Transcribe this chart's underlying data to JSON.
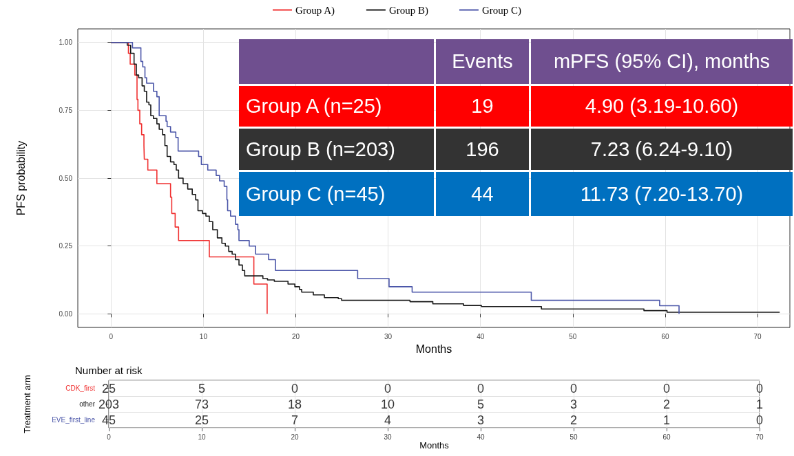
{
  "chart_data": [
    {
      "type": "step",
      "xlabel": "Months",
      "ylabel": "PFS probability",
      "xlim": [
        -3.6,
        73.5
      ],
      "xticks": [
        0,
        10,
        20,
        30,
        40,
        50,
        60,
        70
      ],
      "ylim": [
        -0.05,
        1.05
      ],
      "yticks": [
        {
          "value": 0,
          "label": "0.00"
        },
        {
          "value": 0.25,
          "label": "0.25"
        },
        {
          "value": 0.5,
          "label": "0.50"
        },
        {
          "value": 0.75,
          "label": "0.75"
        },
        {
          "value": 1,
          "label": "1.00"
        }
      ],
      "grid": true,
      "legend": "top",
      "marker": "none",
      "line_style": "solid",
      "series": [
        {
          "name": "Group A)",
          "color": "#f03030",
          "x": [
            0,
            1.88,
            2.07,
            2.57,
            2.81,
            2.91,
            3.11,
            3.31,
            3.56,
            3.6,
            3.98,
            4.96,
            6.44,
            6.57,
            6.94,
            7.31,
            10.64,
            15.46,
            16.9
          ],
          "values": [
            1,
            0.96,
            0.92,
            0.88,
            0.79,
            0.75,
            0.7,
            0.66,
            0.62,
            0.57,
            0.53,
            0.48,
            0.43,
            0.37,
            0.32,
            0.27,
            0.21,
            0.11,
            0
          ]
        },
        {
          "name": "Group B)",
          "color": "#1a1a1a",
          "x": [
            0,
            1.75,
            2.12,
            2.49,
            2.74,
            2.99,
            3.36,
            3.6,
            3.85,
            4.1,
            4.3,
            4.59,
            4.96,
            5.21,
            5.58,
            5.83,
            6.07,
            6.44,
            6.81,
            7.06,
            7.31,
            7.8,
            8.3,
            8.79,
            9.16,
            9.41,
            9.9,
            10.27,
            10.64,
            11.01,
            11.51,
            12.0,
            12.37,
            12.74,
            13.11,
            13.48,
            13.85,
            14.22,
            14.47,
            16.44,
            16.94,
            17.68,
            19.16,
            19.9,
            20.4,
            20.64,
            21.9,
            23.1,
            24.6,
            24.96,
            32.37,
            34.84,
            38.17,
            40.1,
            46.6,
            57.7,
            60.2,
            72.4
          ],
          "values": [
            1,
            0.99,
            0.96,
            0.92,
            0.88,
            0.87,
            0.84,
            0.82,
            0.78,
            0.77,
            0.73,
            0.72,
            0.7,
            0.68,
            0.66,
            0.62,
            0.58,
            0.56,
            0.55,
            0.53,
            0.5,
            0.48,
            0.46,
            0.44,
            0.42,
            0.38,
            0.37,
            0.36,
            0.34,
            0.31,
            0.28,
            0.26,
            0.25,
            0.23,
            0.22,
            0.2,
            0.18,
            0.16,
            0.14,
            0.13,
            0.125,
            0.12,
            0.11,
            0.1,
            0.09,
            0.08,
            0.07,
            0.06,
            0.056,
            0.05,
            0.045,
            0.037,
            0.031,
            0.027,
            0.018,
            0.012,
            0.006,
            0.006
          ]
        },
        {
          "name": "Group C)",
          "color": "#4a55a8",
          "x": [
            0,
            2.32,
            3.23,
            3.43,
            3.67,
            3.85,
            4.59,
            4.96,
            5.21,
            5.95,
            6.07,
            6.44,
            7.01,
            7.26,
            9.48,
            9.78,
            10.47,
            11.38,
            11.75,
            12.25,
            12.54,
            12.62,
            12.94,
            13.48,
            13.73,
            13.85,
            14.96,
            15.65,
            17.06,
            17.8,
            26.7,
            30.1,
            32.6,
            45.5,
            59.4,
            61.5
          ],
          "values": [
            1,
            0.98,
            0.93,
            0.91,
            0.87,
            0.85,
            0.82,
            0.8,
            0.73,
            0.71,
            0.69,
            0.67,
            0.65,
            0.6,
            0.58,
            0.55,
            0.53,
            0.51,
            0.49,
            0.47,
            0.42,
            0.38,
            0.36,
            0.33,
            0.31,
            0.27,
            0.25,
            0.22,
            0.2,
            0.16,
            0.13,
            0.1,
            0.08,
            0.05,
            0.03,
            0
          ]
        }
      ],
      "annotations": [
        "Events",
        "mPFS (95% CI), months",
        "Group A (n=25)",
        "19",
        "4.90 (3.19-10.60)",
        "Group B (n=203)",
        "196",
        "7.23 (6.24-9.10)",
        "Group C (n=45)",
        "44",
        "11.73 (7.20-13.70)"
      ]
    },
    {
      "type": "heatmap",
      "title": "Number at risk",
      "xlabel": "Months",
      "ylabel": "Treatment arm",
      "grid": true,
      "data_labels": true,
      "categories": [
        "0",
        "10",
        "20",
        "30",
        "40",
        "50",
        "60",
        "70"
      ],
      "y_categories": [
        "CDK_first",
        "other",
        "EVE_first_line"
      ],
      "colors": [
        "#f03030",
        "#1a1a1a",
        "#4a55a8"
      ],
      "cells": [
        [
          25,
          5,
          0,
          0,
          0,
          0,
          0,
          0
        ],
        [
          203,
          73,
          18,
          10,
          5,
          3,
          2,
          1
        ],
        [
          45,
          25,
          7,
          4,
          3,
          2,
          1,
          0
        ]
      ]
    }
  ]
}
